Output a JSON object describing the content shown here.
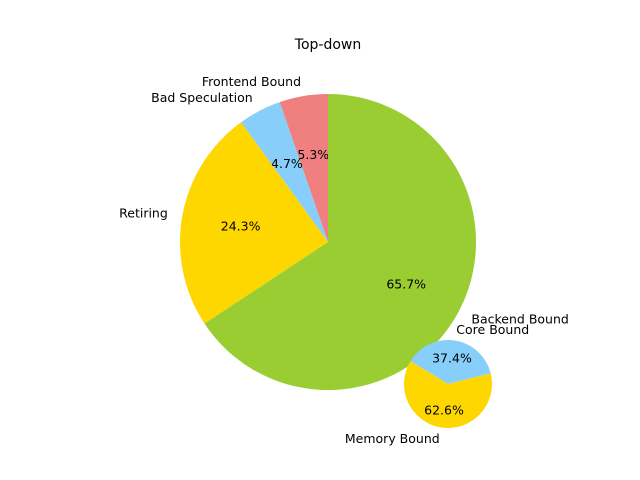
{
  "chart_data": [
    {
      "type": "pie",
      "title": "Top-down",
      "start_angle_deg": 90,
      "slices": [
        {
          "label": "Frontend Bound",
          "value": 5.3,
          "display": "5.3%",
          "color": "#f08080"
        },
        {
          "label": "Bad Speculation",
          "value": 4.7,
          "display": "4.7%",
          "color": "#87cefa"
        },
        {
          "label": "Retiring",
          "value": 24.3,
          "display": "24.3%",
          "color": "#ffd700"
        },
        {
          "label": "Backend Bound",
          "value": 65.7,
          "display": "65.7%",
          "color": "#9acd32"
        }
      ]
    },
    {
      "type": "pie",
      "title": "",
      "start_angle_deg": 14,
      "slices": [
        {
          "label": "Core Bound",
          "value": 37.4,
          "display": "37.4%",
          "color": "#87cefa"
        },
        {
          "label": "Memory Bound",
          "value": 62.6,
          "display": "62.6%",
          "color": "#ffd700"
        }
      ]
    }
  ]
}
